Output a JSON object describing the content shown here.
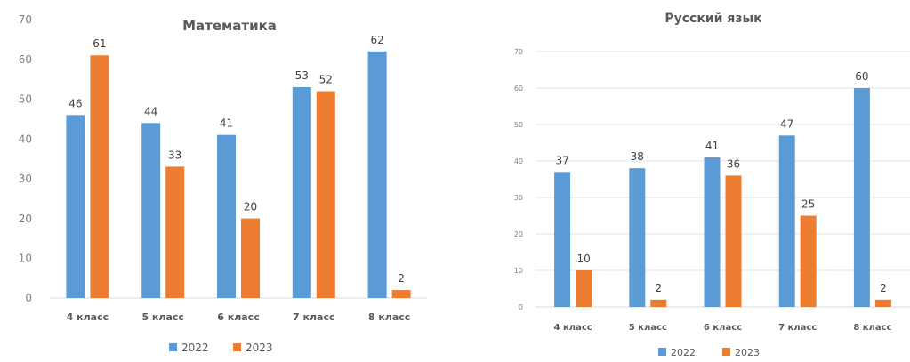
{
  "chart_data": [
    {
      "type": "bar",
      "title": "Математика",
      "categories": [
        "4 класс",
        "5 класс",
        "6 класс",
        "7 класс",
        "8 класс"
      ],
      "series": [
        {
          "name": "2022",
          "values": [
            46,
            44,
            41,
            53,
            62
          ],
          "color": "#5b9bd5"
        },
        {
          "name": "2023",
          "values": [
            61,
            33,
            20,
            52,
            2
          ],
          "color": "#ed7d31"
        }
      ],
      "ylim": [
        0,
        70
      ],
      "yticks": [
        0,
        10,
        20,
        30,
        40,
        50,
        60,
        70
      ],
      "grid": false,
      "legend": "bottom"
    },
    {
      "type": "bar",
      "title": "Русский язык",
      "categories": [
        "4 класс",
        "5 класс",
        "6 класс",
        "7 класс",
        "8 класс"
      ],
      "series": [
        {
          "name": "2022",
          "values": [
            37,
            38,
            41,
            47,
            60
          ],
          "color": "#5b9bd5"
        },
        {
          "name": "2023",
          "values": [
            10,
            2,
            36,
            25,
            2
          ],
          "color": "#ed7d31"
        }
      ],
      "ylim": [
        0,
        70
      ],
      "yticks": [
        0,
        10,
        20,
        30,
        40,
        50,
        60,
        70
      ],
      "grid": true,
      "legend": "bottom"
    }
  ]
}
